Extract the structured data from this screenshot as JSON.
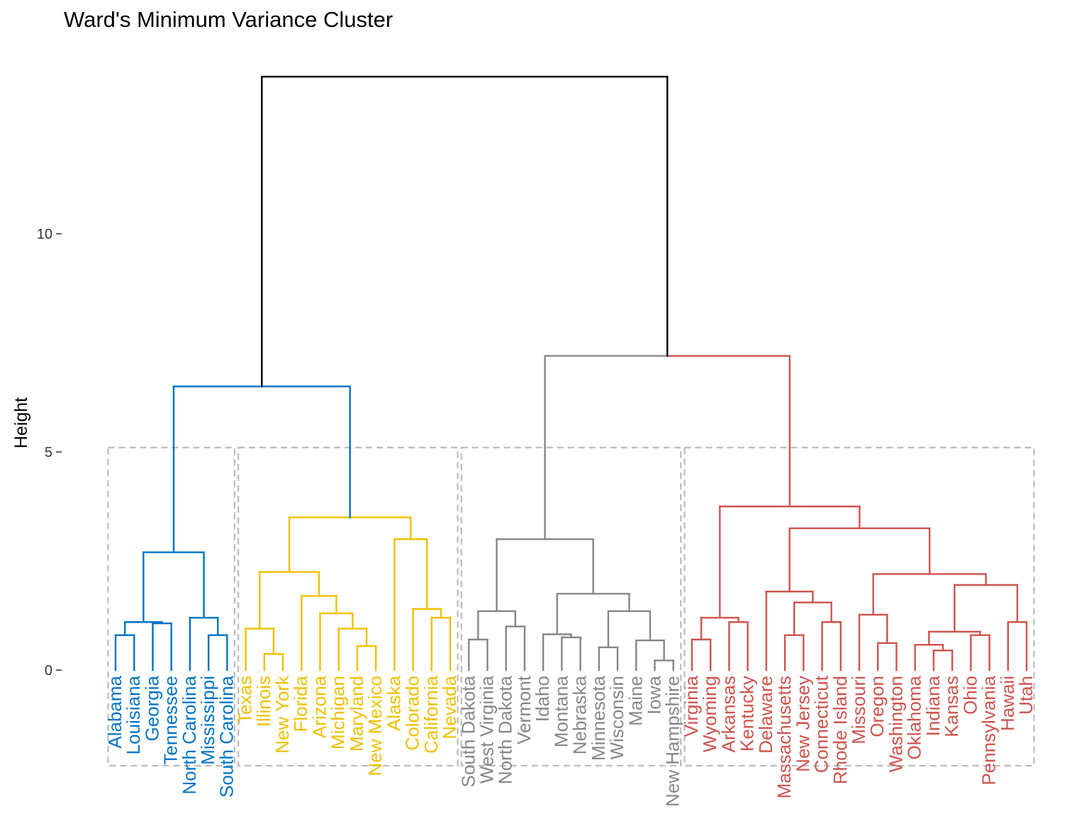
{
  "chart_data": {
    "type": "dendrogram",
    "title": "Ward's Minimum Variance Cluster",
    "ylabel": "Height",
    "xlabel": "",
    "ylim": [
      0,
      13.5
    ],
    "yticks": [
      {
        "v": 0,
        "label": "0"
      },
      {
        "v": 5,
        "label": "5"
      },
      {
        "v": 10,
        "label": "10"
      }
    ],
    "grid": false,
    "k": 4,
    "rect": true,
    "colors": {
      "c1": "#0073C2",
      "c2": "#EFC000",
      "c3": "#868686",
      "c4": "#CD534C",
      "root": "#000000",
      "rect": "#BBBBBB",
      "axis": "#333333"
    },
    "leaves": [
      {
        "name": "Alabama",
        "cluster": "c1"
      },
      {
        "name": "Louisiana",
        "cluster": "c1"
      },
      {
        "name": "Georgia",
        "cluster": "c1"
      },
      {
        "name": "Tennessee",
        "cluster": "c1"
      },
      {
        "name": "North Carolina",
        "cluster": "c1"
      },
      {
        "name": "Mississippi",
        "cluster": "c1"
      },
      {
        "name": "South Carolina",
        "cluster": "c1"
      },
      {
        "name": "Texas",
        "cluster": "c2"
      },
      {
        "name": "Illinois",
        "cluster": "c2"
      },
      {
        "name": "New York",
        "cluster": "c2"
      },
      {
        "name": "Florida",
        "cluster": "c2"
      },
      {
        "name": "Arizona",
        "cluster": "c2"
      },
      {
        "name": "Michigan",
        "cluster": "c2"
      },
      {
        "name": "Maryland",
        "cluster": "c2"
      },
      {
        "name": "New Mexico",
        "cluster": "c2"
      },
      {
        "name": "Alaska",
        "cluster": "c2"
      },
      {
        "name": "Colorado",
        "cluster": "c2"
      },
      {
        "name": "California",
        "cluster": "c2"
      },
      {
        "name": "Nevada",
        "cluster": "c2"
      },
      {
        "name": "South Dakota",
        "cluster": "c3"
      },
      {
        "name": "West Virginia",
        "cluster": "c3"
      },
      {
        "name": "North Dakota",
        "cluster": "c3"
      },
      {
        "name": "Vermont",
        "cluster": "c3"
      },
      {
        "name": "Idaho",
        "cluster": "c3"
      },
      {
        "name": "Montana",
        "cluster": "c3"
      },
      {
        "name": "Nebraska",
        "cluster": "c3"
      },
      {
        "name": "Minnesota",
        "cluster": "c3"
      },
      {
        "name": "Wisconsin",
        "cluster": "c3"
      },
      {
        "name": "Maine",
        "cluster": "c3"
      },
      {
        "name": "Iowa",
        "cluster": "c3"
      },
      {
        "name": "New Hampshire",
        "cluster": "c3"
      },
      {
        "name": "Virginia",
        "cluster": "c4"
      },
      {
        "name": "Wyoming",
        "cluster": "c4"
      },
      {
        "name": "Arkansas",
        "cluster": "c4"
      },
      {
        "name": "Kentucky",
        "cluster": "c4"
      },
      {
        "name": "Delaware",
        "cluster": "c4"
      },
      {
        "name": "Massachusetts",
        "cluster": "c4"
      },
      {
        "name": "New Jersey",
        "cluster": "c4"
      },
      {
        "name": "Connecticut",
        "cluster": "c4"
      },
      {
        "name": "Rhode Island",
        "cluster": "c4"
      },
      {
        "name": "Missouri",
        "cluster": "c4"
      },
      {
        "name": "Oregon",
        "cluster": "c4"
      },
      {
        "name": "Washington",
        "cluster": "c4"
      },
      {
        "name": "Oklahoma",
        "cluster": "c4"
      },
      {
        "name": "Indiana",
        "cluster": "c4"
      },
      {
        "name": "Kansas",
        "cluster": "c4"
      },
      {
        "name": "Ohio",
        "cluster": "c4"
      },
      {
        "name": "Pennsylvania",
        "cluster": "c4"
      },
      {
        "name": "Hawaii",
        "cluster": "c4"
      },
      {
        "name": "Utah",
        "cluster": "c4"
      }
    ],
    "tree": [
      "root",
      13.6,
      [
        "c1",
        6.5,
        [
          "c1",
          2.7,
          [
            "c1",
            1.1,
            [
              "c1",
              0.8,
              "Alabama",
              "Louisiana"
            ],
            [
              "c1",
              1.07,
              "Georgia",
              "Tennessee"
            ]
          ],
          [
            "c1",
            1.2,
            "North Carolina",
            [
              "c1",
              0.8,
              "Mississippi",
              "South Carolina"
            ]
          ]
        ],
        [
          "c2",
          3.5,
          [
            "c2",
            2.25,
            [
              "c2",
              0.95,
              "Texas",
              [
                "c2",
                0.37,
                "Illinois",
                "New York"
              ]
            ],
            [
              "c2",
              1.7,
              "Florida",
              [
                "c2",
                1.3,
                "Arizona",
                [
                  "c2",
                  0.95,
                  "Michigan",
                  [
                    "c2",
                    0.55,
                    "Maryland",
                    "New Mexico"
                  ]
                ]
              ]
            ]
          ],
          [
            "c2",
            3.0,
            "Alaska",
            [
              "c2",
              1.4,
              "Colorado",
              [
                "c2",
                1.2,
                "California",
                "Nevada"
              ]
            ]
          ]
        ]
      ],
      [
        "c34",
        7.2,
        [
          "c3",
          3.0,
          [
            "c3",
            1.35,
            [
              "c3",
              0.7,
              "South Dakota",
              "West Virginia"
            ],
            [
              "c3",
              1.0,
              "North Dakota",
              "Vermont"
            ]
          ],
          [
            "c3",
            1.75,
            [
              "c3",
              0.82,
              "Idaho",
              [
                "c3",
                0.75,
                "Montana",
                "Nebraska"
              ]
            ],
            [
              "c3",
              1.35,
              [
                "c3",
                0.52,
                "Minnesota",
                "Wisconsin"
              ],
              [
                "c3",
                0.68,
                "Maine",
                [
                  "c3",
                  0.22,
                  "Iowa",
                  "New Hampshire"
                ]
              ]
            ]
          ]
        ],
        [
          "c4",
          3.75,
          [
            "c4",
            1.2,
            [
              "c4",
              0.7,
              "Virginia",
              "Wyoming"
            ],
            [
              "c4",
              1.1,
              "Arkansas",
              "Kentucky"
            ]
          ],
          [
            "c4",
            3.25,
            [
              "c4",
              1.8,
              "Delaware",
              [
                "c4",
                1.55,
                [
                  "c4",
                  0.8,
                  "Massachusetts",
                  "New Jersey"
                ],
                [
                  "c4",
                  1.1,
                  "Connecticut",
                  "Rhode Island"
                ]
              ]
            ],
            [
              "c4",
              2.2,
              [
                "c4",
                1.27,
                "Missouri",
                [
                  "c4",
                  0.62,
                  "Oregon",
                  "Washington"
                ]
              ],
              [
                "c4",
                1.95,
                [
                  "c4",
                  0.88,
                  [
                    "c4",
                    0.58,
                    "Oklahoma",
                    [
                      "c4",
                      0.45,
                      "Indiana",
                      "Kansas"
                    ]
                  ],
                  [
                    "c4",
                    0.8,
                    "Ohio",
                    "Pennsylvania"
                  ]
                ],
                [
                  "c4",
                  1.1,
                  "Hawaii",
                  "Utah"
                ]
              ]
            ]
          ]
        ]
      ]
    ]
  }
}
